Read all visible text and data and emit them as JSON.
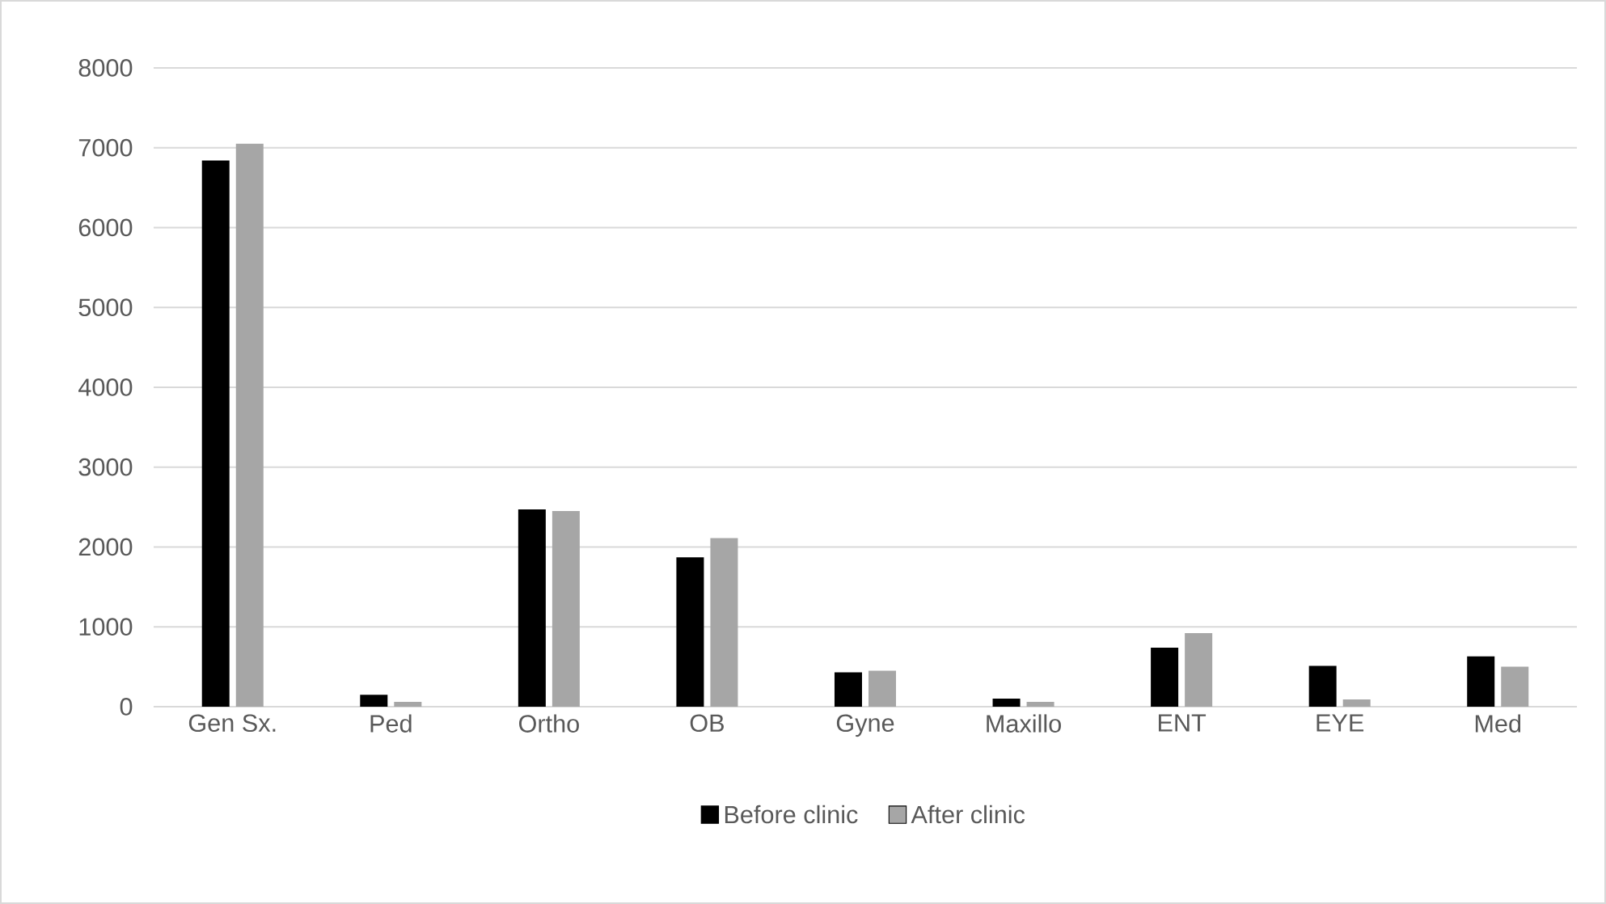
{
  "chart_data": {
    "type": "bar",
    "categories": [
      "Gen Sx.",
      "Ped",
      "Ortho",
      "OB",
      "Gyne",
      "Maxillo",
      "ENT",
      "EYE",
      "Med"
    ],
    "series": [
      {
        "name": "Before clinic",
        "color": "#000000",
        "values": [
          6840,
          150,
          2470,
          1870,
          430,
          100,
          740,
          510,
          630
        ]
      },
      {
        "name": "After clinic",
        "color": "#a6a6a6",
        "values": [
          7050,
          60,
          2450,
          2110,
          450,
          60,
          920,
          90,
          500
        ]
      }
    ],
    "ylim": [
      0,
      8000
    ],
    "yticks": [
      0,
      1000,
      2000,
      3000,
      4000,
      5000,
      6000,
      7000,
      8000
    ],
    "grid": "y",
    "legend": "bottom"
  }
}
